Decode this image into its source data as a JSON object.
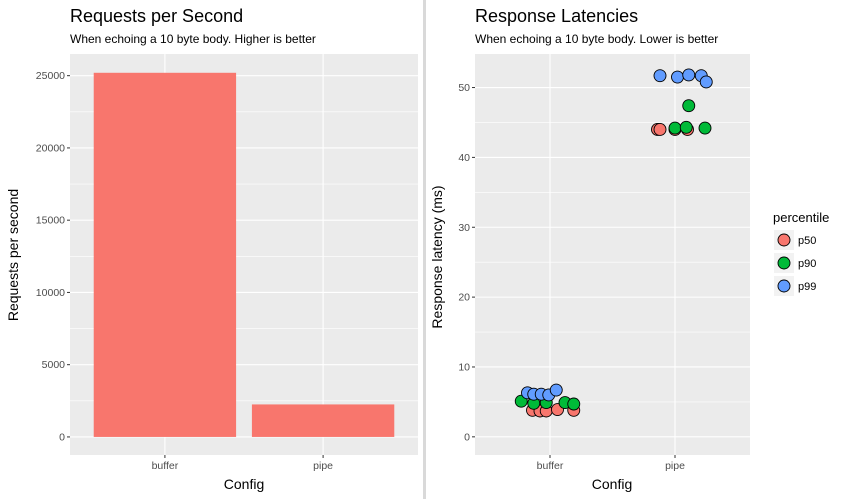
{
  "chart_data": [
    {
      "type": "bar",
      "title": "Requests per Second",
      "subtitle": "When echoing a 10 byte body. Higher is better",
      "xlabel": "Config",
      "ylabel": "Requests per second",
      "categories": [
        "buffer",
        "pipe"
      ],
      "values": [
        25200,
        2250
      ],
      "ylim": [
        -1250,
        26500
      ],
      "yticks": [
        0,
        5000,
        10000,
        15000,
        20000,
        25000
      ],
      "ytick_labels": [
        "0",
        "5000",
        "10000",
        "15000",
        "20000",
        "25000"
      ],
      "bar_color": "#f8766d",
      "grid": true
    },
    {
      "type": "scatter",
      "title": "Response Latencies",
      "subtitle": "When echoing a 10 byte body. Lower is better",
      "xlabel": "Config",
      "ylabel": "Response latency (ms)",
      "categories": [
        "buffer",
        "pipe"
      ],
      "ylim": [
        -2.6,
        54.8
      ],
      "yticks": [
        0,
        10,
        20,
        30,
        40,
        50
      ],
      "ytick_labels": [
        "0",
        "10",
        "20",
        "30",
        "40",
        "50"
      ],
      "legend_title": "percentile",
      "legend_position": "right",
      "grid": true,
      "series": [
        {
          "name": "p50",
          "color": "#f8766d",
          "points": [
            {
              "x": "buffer",
              "jitter": -0.14,
              "y": 3.8
            },
            {
              "x": "buffer",
              "jitter": -0.08,
              "y": 3.7
            },
            {
              "x": "buffer",
              "jitter": -0.03,
              "y": 3.7
            },
            {
              "x": "buffer",
              "jitter": 0.06,
              "y": 3.9
            },
            {
              "x": "buffer",
              "jitter": 0.19,
              "y": 3.8
            },
            {
              "x": "pipe",
              "jitter": -0.14,
              "y": 44.0
            },
            {
              "x": "pipe",
              "jitter": -0.12,
              "y": 44.0
            },
            {
              "x": "pipe",
              "jitter": 0.0,
              "y": 44.0
            },
            {
              "x": "pipe",
              "jitter": 0.1,
              "y": 44.0
            }
          ]
        },
        {
          "name": "p90",
          "color": "#00ba38",
          "points": [
            {
              "x": "buffer",
              "jitter": -0.23,
              "y": 5.1
            },
            {
              "x": "buffer",
              "jitter": -0.13,
              "y": 4.8
            },
            {
              "x": "buffer",
              "jitter": -0.03,
              "y": 4.9
            },
            {
              "x": "buffer",
              "jitter": 0.12,
              "y": 4.9
            },
            {
              "x": "buffer",
              "jitter": 0.19,
              "y": 4.7
            },
            {
              "x": "pipe",
              "jitter": 0.0,
              "y": 44.2
            },
            {
              "x": "pipe",
              "jitter": 0.09,
              "y": 44.3
            },
            {
              "x": "pipe",
              "jitter": 0.11,
              "y": 47.4
            },
            {
              "x": "pipe",
              "jitter": 0.24,
              "y": 44.2
            }
          ]
        },
        {
          "name": "p99",
          "color": "#619cff",
          "points": [
            {
              "x": "buffer",
              "jitter": -0.18,
              "y": 6.3
            },
            {
              "x": "buffer",
              "jitter": -0.13,
              "y": 6.1
            },
            {
              "x": "buffer",
              "jitter": -0.07,
              "y": 6.1
            },
            {
              "x": "buffer",
              "jitter": -0.01,
              "y": 6.0
            },
            {
              "x": "buffer",
              "jitter": 0.05,
              "y": 6.7
            },
            {
              "x": "pipe",
              "jitter": -0.12,
              "y": 51.7
            },
            {
              "x": "pipe",
              "jitter": 0.02,
              "y": 51.5
            },
            {
              "x": "pipe",
              "jitter": 0.11,
              "y": 51.8
            },
            {
              "x": "pipe",
              "jitter": 0.21,
              "y": 51.7
            },
            {
              "x": "pipe",
              "jitter": 0.25,
              "y": 50.8
            }
          ]
        }
      ]
    }
  ]
}
